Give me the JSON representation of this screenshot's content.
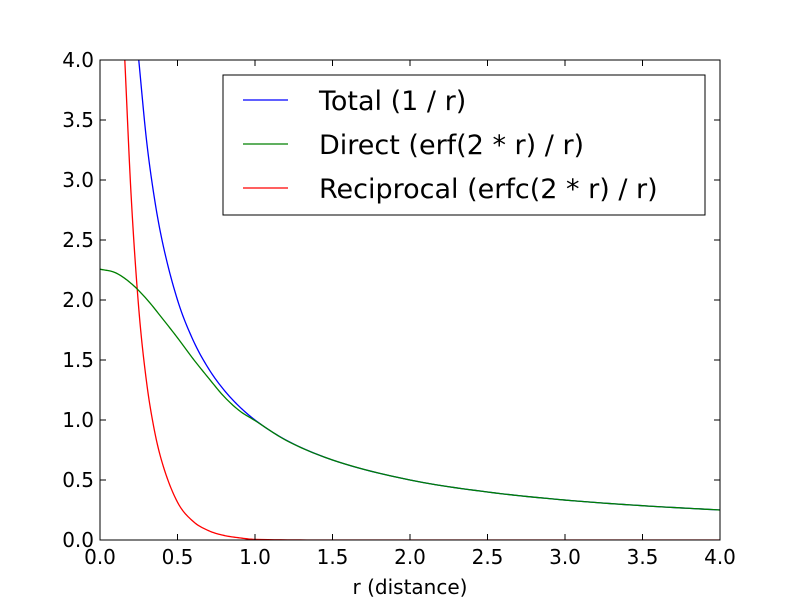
{
  "chart_data": {
    "type": "line",
    "title": "",
    "xlabel": "r (distance)",
    "ylabel": "",
    "xlim": [
      0.0,
      4.0
    ],
    "ylim": [
      0.0,
      4.0
    ],
    "xticks": [
      "0.0",
      "0.5",
      "1.0",
      "1.5",
      "2.0",
      "2.5",
      "3.0",
      "3.5",
      "4.0"
    ],
    "yticks": [
      "0.0",
      "0.5",
      "1.0",
      "1.5",
      "2.0",
      "2.5",
      "3.0",
      "3.5",
      "4.0"
    ],
    "grid": false,
    "legend_position": "top-right",
    "series": [
      {
        "name": "Total (1 / r)",
        "color": "#0000ff",
        "x": [
          0.25,
          0.3,
          0.35,
          0.4,
          0.5,
          0.6,
          0.7,
          0.8,
          0.9,
          1.0,
          1.2,
          1.5,
          2.0,
          2.5,
          3.0,
          3.5,
          4.0
        ],
        "y": [
          4.0,
          3.333,
          2.857,
          2.5,
          2.0,
          1.667,
          1.429,
          1.25,
          1.111,
          1.0,
          0.833,
          0.667,
          0.5,
          0.4,
          0.333,
          0.286,
          0.25
        ]
      },
      {
        "name": "Direct (erf(2 * r) / r)",
        "color": "#008000",
        "x": [
          0.0,
          0.1,
          0.2,
          0.3,
          0.4,
          0.5,
          0.6,
          0.7,
          0.8,
          0.9,
          1.0,
          1.2,
          1.5,
          2.0,
          2.5,
          3.0,
          3.5,
          4.0
        ],
        "y": [
          2.257,
          2.227,
          2.139,
          2.009,
          1.85,
          1.685,
          1.511,
          1.35,
          1.196,
          1.077,
          0.995,
          0.831,
          0.667,
          0.5,
          0.4,
          0.333,
          0.286,
          0.25
        ]
      },
      {
        "name": "Reciprocal (erfc(2 * r) / r)",
        "color": "#ff0000",
        "x": [
          0.16,
          0.2,
          0.25,
          0.3,
          0.35,
          0.4,
          0.5,
          0.6,
          0.7,
          0.8,
          0.9,
          1.0,
          1.5,
          2.0,
          4.0
        ],
        "y": [
          4.0,
          2.89,
          1.93,
          1.32,
          0.92,
          0.65,
          0.315,
          0.156,
          0.078,
          0.038,
          0.018,
          0.005,
          0.0,
          0.0,
          0.0
        ]
      }
    ]
  }
}
